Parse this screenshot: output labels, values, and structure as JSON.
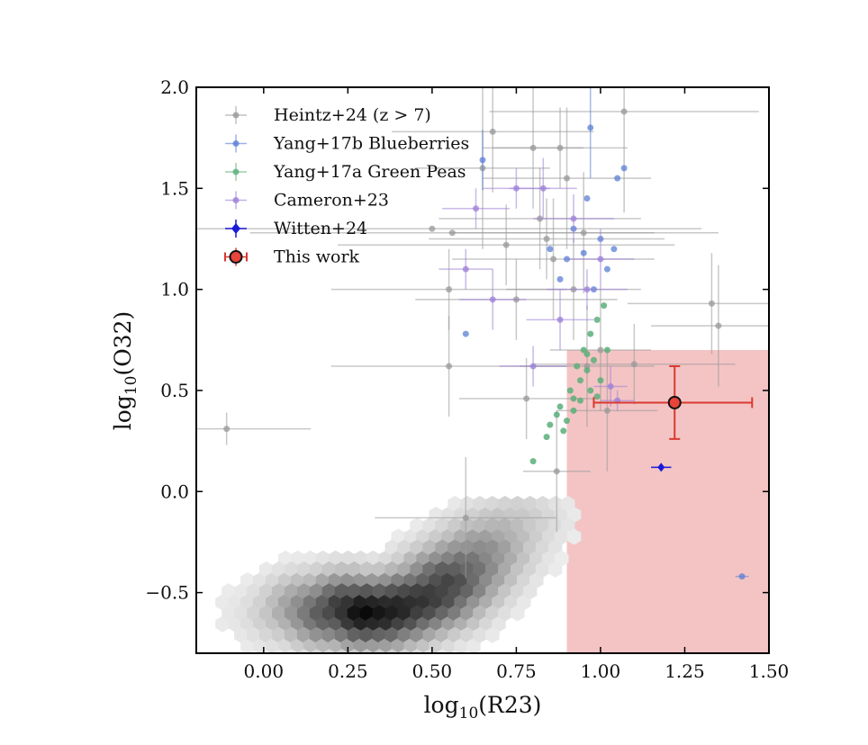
{
  "chart_data": {
    "type": "scatter",
    "xlabel": "log10(R23)",
    "ylabel": "log10(O32)",
    "xlim": [
      -0.2,
      1.5
    ],
    "ylim": [
      -0.8,
      2.0
    ],
    "xticks": [
      0.0,
      0.25,
      0.5,
      0.75,
      1.0,
      1.25,
      1.5
    ],
    "xtick_labels": [
      "0.00",
      "0.25",
      "0.50",
      "0.75",
      "1.00",
      "1.25",
      "1.50"
    ],
    "yticks": [
      -0.5,
      0.0,
      0.5,
      1.0,
      1.5,
      2.0
    ],
    "ytick_labels": [
      "−0.5",
      "0.0",
      "0.5",
      "1.0",
      "1.5",
      "2.0"
    ],
    "legend_position": "top-left",
    "grid": false,
    "shaded_region": {
      "x_range": [
        0.9,
        1.5
      ],
      "y_range": [
        -0.8,
        0.7
      ],
      "color": "#f4c4c4"
    },
    "background_density": {
      "kind": "hexbin",
      "color": "gray",
      "centers": [
        [
          0.0,
          -0.6,
          0.1
        ],
        [
          0.05,
          -0.62,
          0.15
        ],
        [
          0.1,
          -0.6,
          0.3
        ],
        [
          0.15,
          -0.58,
          0.5
        ],
        [
          0.2,
          -0.6,
          0.7
        ],
        [
          0.25,
          -0.58,
          0.85
        ],
        [
          0.3,
          -0.6,
          1.0
        ],
        [
          0.35,
          -0.6,
          0.95
        ],
        [
          0.4,
          -0.58,
          0.9
        ],
        [
          0.45,
          -0.55,
          0.85
        ],
        [
          0.5,
          -0.52,
          0.8
        ],
        [
          0.55,
          -0.45,
          0.75
        ],
        [
          0.6,
          -0.38,
          0.6
        ],
        [
          0.65,
          -0.3,
          0.45
        ],
        [
          0.7,
          -0.22,
          0.3
        ],
        [
          0.75,
          -0.15,
          0.2
        ],
        [
          0.8,
          -0.08,
          0.1
        ]
      ]
    },
    "series": [
      {
        "name": "Heintz+24 (z > 7)",
        "color": "#9a9a9a",
        "marker": "circle",
        "points": [
          {
            "x": -0.11,
            "y": 0.31,
            "xerr": 0.25,
            "yerr": 0.08
          },
          {
            "x": 0.5,
            "y": 1.3,
            "xerr": 0.8,
            "yerr": 0.0
          },
          {
            "x": 0.56,
            "y": 1.28,
            "xerr": 0.6,
            "yerr": 0.0
          },
          {
            "x": 0.55,
            "y": 1.0,
            "xerr": 0.35,
            "yerr": 0.2
          },
          {
            "x": 0.55,
            "y": 0.62,
            "xerr": 0.35,
            "yerr": 0.25
          },
          {
            "x": 0.6,
            "y": -0.13,
            "xerr": 0.27,
            "yerr": 0.3
          },
          {
            "x": 0.65,
            "y": 1.6,
            "xerr": 0.2,
            "yerr": 0.4
          },
          {
            "x": 0.68,
            "y": 1.78,
            "xerr": 0.3,
            "yerr": 0.3
          },
          {
            "x": 0.72,
            "y": 1.22,
            "xerr": 0.5,
            "yerr": 0.2
          },
          {
            "x": 0.75,
            "y": 0.95,
            "xerr": 0.3,
            "yerr": 0.2
          },
          {
            "x": 0.78,
            "y": 0.46,
            "xerr": 0.2,
            "yerr": 0.2
          },
          {
            "x": 0.8,
            "y": 1.7,
            "xerr": 0.15,
            "yerr": 0.3
          },
          {
            "x": 0.82,
            "y": 1.35,
            "xerr": 0.3,
            "yerr": 0.25
          },
          {
            "x": 0.84,
            "y": 1.25,
            "xerr": 0.35,
            "yerr": 0.2
          },
          {
            "x": 0.86,
            "y": 1.15,
            "xerr": 0.3,
            "yerr": 0.3
          },
          {
            "x": 0.88,
            "y": 1.7,
            "xerr": 0.2,
            "yerr": 0.2
          },
          {
            "x": 0.9,
            "y": 1.55,
            "xerr": 0.25,
            "yerr": 0.35
          },
          {
            "x": 0.92,
            "y": 1.0,
            "xerr": 0.2,
            "yerr": 0.25
          },
          {
            "x": 0.95,
            "y": 1.28,
            "xerr": 0.4,
            "yerr": 0.3
          },
          {
            "x": 0.96,
            "y": 0.62,
            "xerr": 0.2,
            "yerr": 0.3
          },
          {
            "x": 1.0,
            "y": 0.7,
            "xerr": 0.15,
            "yerr": 0.3
          },
          {
            "x": 1.02,
            "y": 0.4,
            "xerr": 0.15,
            "yerr": 0.3
          },
          {
            "x": 1.07,
            "y": 1.88,
            "xerr": 0.4,
            "yerr": 0.5
          },
          {
            "x": 1.1,
            "y": 0.63,
            "xerr": 0.3,
            "yerr": 0.2
          },
          {
            "x": 1.33,
            "y": 0.93,
            "xerr": 0.25,
            "yerr": 0.25
          },
          {
            "x": 1.35,
            "y": 0.82,
            "xerr": 0.2,
            "yerr": 0.3
          },
          {
            "x": 0.87,
            "y": 0.1,
            "xerr": 0.1,
            "yerr": 0.3
          }
        ]
      },
      {
        "name": "Yang+17b Blueberries",
        "color": "#5b7fd4",
        "marker": "circle",
        "points": [
          {
            "x": 0.6,
            "y": 0.78,
            "xerr": 0.0,
            "yerr": 0.0
          },
          {
            "x": 0.65,
            "y": 1.64,
            "xerr": 0.0,
            "yerr": 0.15
          },
          {
            "x": 0.85,
            "y": 1.2,
            "xerr": 0.0,
            "yerr": 0.0
          },
          {
            "x": 0.88,
            "y": 1.05,
            "xerr": 0.0,
            "yerr": 0.0
          },
          {
            "x": 0.9,
            "y": 1.15,
            "xerr": 0.0,
            "yerr": 0.0
          },
          {
            "x": 0.92,
            "y": 1.3,
            "xerr": 0.0,
            "yerr": 0.0
          },
          {
            "x": 0.95,
            "y": 1.18,
            "xerr": 0.0,
            "yerr": 0.0
          },
          {
            "x": 0.96,
            "y": 1.45,
            "xerr": 0.0,
            "yerr": 0.0
          },
          {
            "x": 0.97,
            "y": 1.8,
            "xerr": 0.0,
            "yerr": 0.25
          },
          {
            "x": 0.98,
            "y": 1.0,
            "xerr": 0.0,
            "yerr": 0.0
          },
          {
            "x": 1.0,
            "y": 1.25,
            "xerr": 0.0,
            "yerr": 0.0
          },
          {
            "x": 1.02,
            "y": 1.1,
            "xerr": 0.0,
            "yerr": 0.0
          },
          {
            "x": 1.04,
            "y": 1.2,
            "xerr": 0.0,
            "yerr": 0.0
          },
          {
            "x": 1.05,
            "y": 1.55,
            "xerr": 0.0,
            "yerr": 0.0
          },
          {
            "x": 1.07,
            "y": 1.6,
            "xerr": 0.0,
            "yerr": 0.0
          },
          {
            "x": 1.42,
            "y": -0.42,
            "xerr": 0.02,
            "yerr": 0.0
          }
        ]
      },
      {
        "name": "Yang+17a Green Peas",
        "color": "#5aaf7a",
        "marker": "circle",
        "points": [
          {
            "x": 0.8,
            "y": 0.15
          },
          {
            "x": 0.84,
            "y": 0.27
          },
          {
            "x": 0.85,
            "y": 0.33
          },
          {
            "x": 0.87,
            "y": 0.38
          },
          {
            "x": 0.88,
            "y": 0.42
          },
          {
            "x": 0.9,
            "y": 0.35
          },
          {
            "x": 0.91,
            "y": 0.5
          },
          {
            "x": 0.92,
            "y": 0.46
          },
          {
            "x": 0.93,
            "y": 0.62
          },
          {
            "x": 0.94,
            "y": 0.55
          },
          {
            "x": 0.95,
            "y": 0.7
          },
          {
            "x": 0.96,
            "y": 0.6
          },
          {
            "x": 0.97,
            "y": 0.78
          },
          {
            "x": 0.98,
            "y": 0.65
          },
          {
            "x": 0.99,
            "y": 0.85
          },
          {
            "x": 1.0,
            "y": 0.55
          },
          {
            "x": 1.01,
            "y": 0.92
          },
          {
            "x": 1.02,
            "y": 0.7
          },
          {
            "x": 0.92,
            "y": 0.4
          },
          {
            "x": 0.94,
            "y": 0.45
          },
          {
            "x": 0.97,
            "y": 0.5
          },
          {
            "x": 0.99,
            "y": 0.47
          },
          {
            "x": 0.89,
            "y": 0.3
          },
          {
            "x": 0.96,
            "y": 0.68
          }
        ]
      },
      {
        "name": "Cameron+23",
        "color": "#9c7fd8",
        "marker": "circle",
        "points": [
          {
            "x": 0.6,
            "y": 1.1,
            "xerr": 0.08,
            "yerr": 0.1
          },
          {
            "x": 0.63,
            "y": 1.4,
            "xerr": 0.1,
            "yerr": 0.1
          },
          {
            "x": 0.68,
            "y": 0.95,
            "xerr": 0.1,
            "yerr": 0.15
          },
          {
            "x": 0.75,
            "y": 1.5,
            "xerr": 0.1,
            "yerr": 0.1
          },
          {
            "x": 0.8,
            "y": 0.62,
            "xerr": 0.1,
            "yerr": 0.1
          },
          {
            "x": 0.83,
            "y": 1.5,
            "xerr": 0.1,
            "yerr": 0.15
          },
          {
            "x": 0.88,
            "y": 0.85,
            "xerr": 0.1,
            "yerr": 0.15
          },
          {
            "x": 0.92,
            "y": 1.35,
            "xerr": 0.12,
            "yerr": 0.12
          },
          {
            "x": 0.96,
            "y": 1.0,
            "xerr": 0.12,
            "yerr": 0.1
          },
          {
            "x": 1.0,
            "y": 1.15,
            "xerr": 0.1,
            "yerr": 0.15
          },
          {
            "x": 1.03,
            "y": 0.52,
            "xerr": 0.05,
            "yerr": 0.1
          },
          {
            "x": 1.05,
            "y": 0.45,
            "xerr": 0.05,
            "yerr": 0.05
          }
        ]
      },
      {
        "name": "Witten+24",
        "color": "#1a1ad8",
        "marker": "diamond",
        "points": [
          {
            "x": 1.18,
            "y": 0.12,
            "xerr": 0.03,
            "yerr": 0.01
          }
        ]
      },
      {
        "name": "This work",
        "color": "#e8443a",
        "edge_color": "#111111",
        "err_color": "#d93a30",
        "marker": "circle-large",
        "points": [
          {
            "x": 1.22,
            "y": 0.44,
            "xerr_low": 0.24,
            "xerr_high": 0.23,
            "yerr_low": 0.18,
            "yerr_high": 0.18
          }
        ]
      }
    ]
  }
}
